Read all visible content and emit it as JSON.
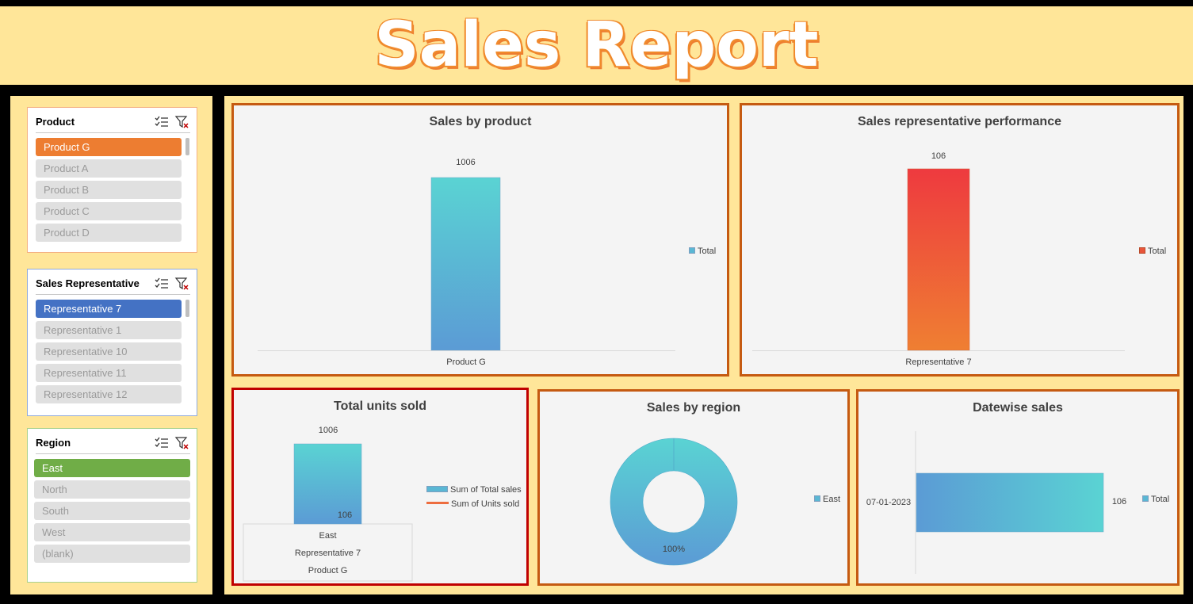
{
  "report": {
    "title": "Sales Report"
  },
  "slicers": {
    "product": {
      "title": "Product",
      "items": [
        "Product G",
        "Product A",
        "Product B",
        "Product C",
        "Product D"
      ],
      "selected_color": "#ed7d31"
    },
    "rep": {
      "title": "Sales Representative",
      "items": [
        "Representative 7",
        "Representative 1",
        "Representative 10",
        "Representative 11",
        "Representative 12"
      ],
      "selected_color": "#4472c4"
    },
    "region": {
      "title": "Region",
      "items": [
        "East",
        "North",
        "South",
        "West",
        "(blank)"
      ],
      "selected_color": "#70ad47"
    }
  },
  "charts": {
    "product": {
      "title": "Sales by product",
      "legend": "Total"
    },
    "rep": {
      "title": "Sales representative performance",
      "legend": "Total"
    },
    "units": {
      "title": "Total units sold",
      "legend_bar": "Sum of Total sales",
      "legend_line": "Sum of Units sold"
    },
    "region": {
      "title": "Sales by region",
      "legend": "East"
    },
    "date": {
      "title": "Datewise sales",
      "legend": "Total"
    }
  },
  "chart_data": [
    {
      "type": "bar",
      "title": "Sales by product",
      "categories": [
        "Product G"
      ],
      "series": [
        {
          "name": "Total",
          "values": [
            1006
          ]
        }
      ],
      "data_labels": [
        "1006"
      ]
    },
    {
      "type": "bar",
      "title": "Sales representative performance",
      "categories": [
        "Representative 7"
      ],
      "series": [
        {
          "name": "Total",
          "values": [
            106
          ]
        }
      ],
      "data_labels": [
        "106"
      ]
    },
    {
      "type": "bar",
      "title": "Total units sold",
      "categories": [
        [
          "East",
          "Representative 7",
          "Product G"
        ]
      ],
      "series": [
        {
          "name": "Sum of Total sales",
          "values": [
            1006
          ]
        },
        {
          "name": "Sum of Units sold",
          "values": [
            106
          ]
        }
      ],
      "data_labels": [
        "1006",
        "106"
      ],
      "category_levels": [
        "East",
        "Representative 7",
        "Product G"
      ]
    },
    {
      "type": "pie",
      "title": "Sales by region",
      "categories": [
        "East"
      ],
      "values": [
        100
      ],
      "data_labels": [
        "100%"
      ],
      "legend": "right"
    },
    {
      "type": "bar",
      "orientation": "horizontal",
      "title": "Datewise sales",
      "categories": [
        "07-01-2023"
      ],
      "series": [
        {
          "name": "Total",
          "values": [
            106
          ]
        }
      ],
      "data_labels": [
        "106"
      ]
    }
  ]
}
